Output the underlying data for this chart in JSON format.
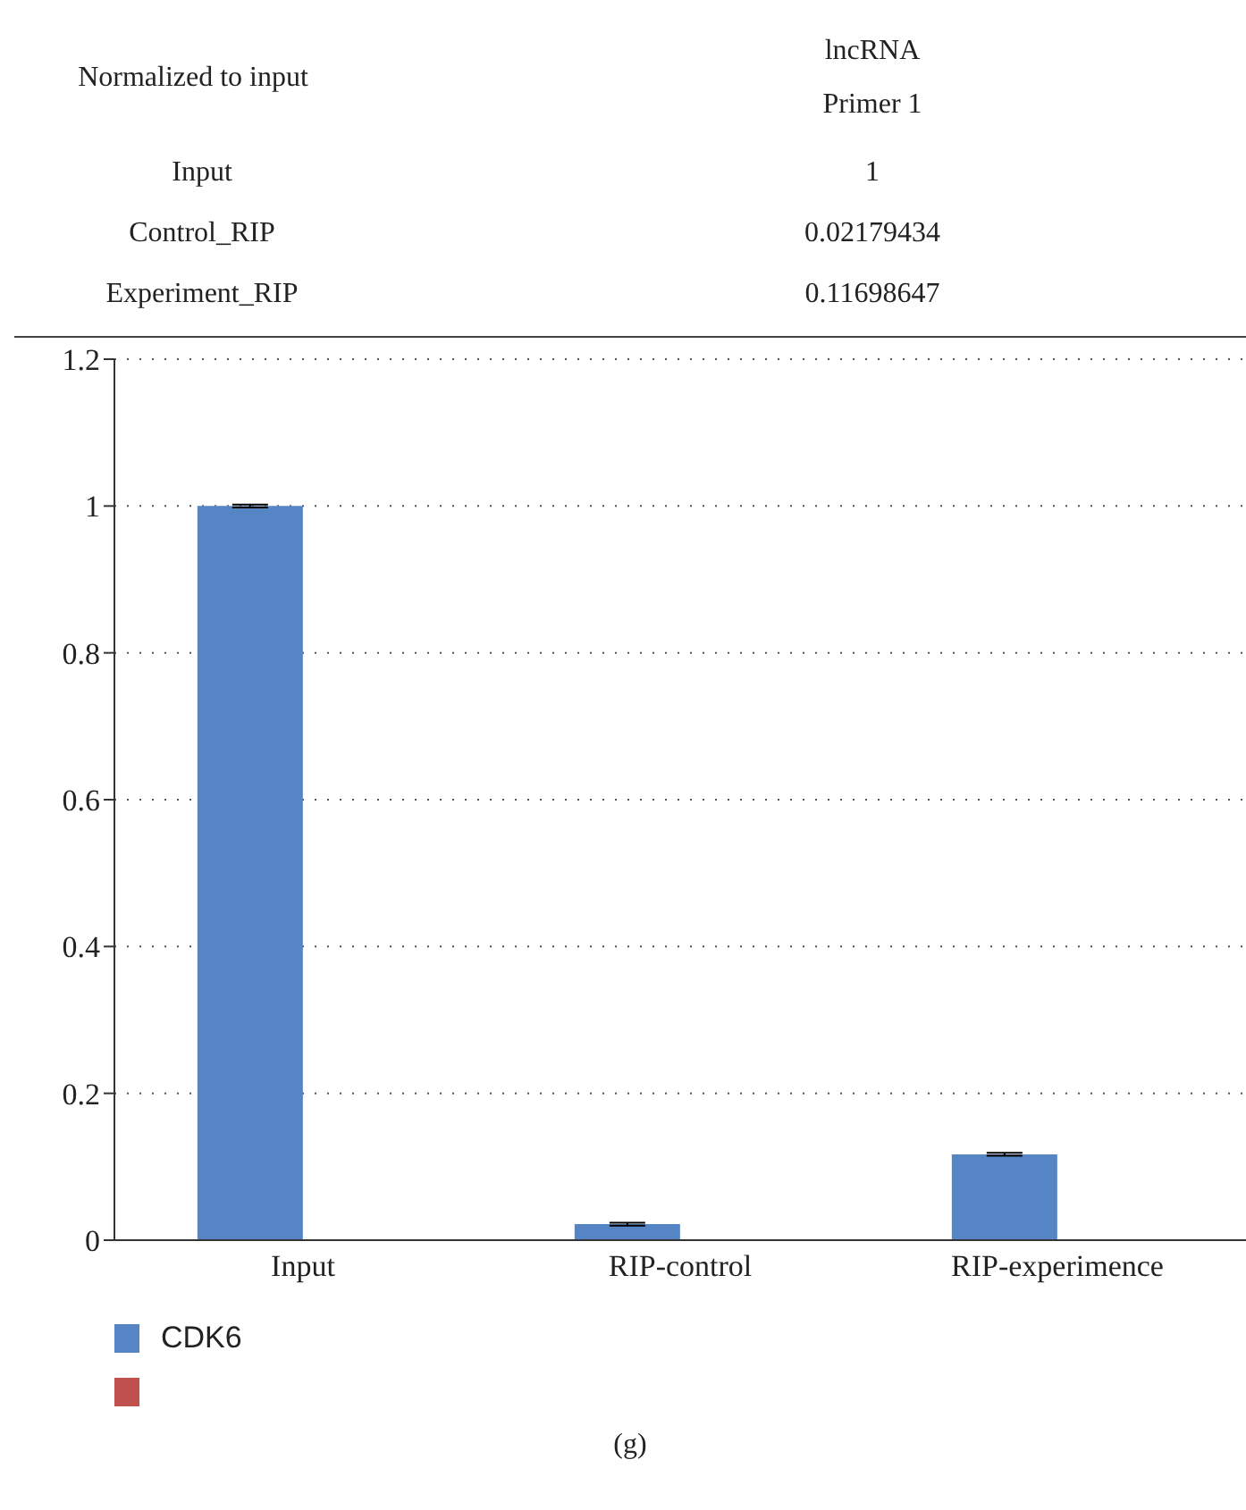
{
  "chart_data": {
    "type": "bar",
    "categories": [
      "Input",
      "RIP-control",
      "RIP-experimence"
    ],
    "series": [
      {
        "name": "CDK6",
        "color": "#5585c5",
        "values": [
          1,
          0.02179434,
          0.11698647
        ],
        "errors": [
          0.002,
          0.002,
          0.002
        ]
      },
      {
        "color": "#c0504d",
        "values": [
          null,
          null,
          null
        ]
      }
    ],
    "ylim": [
      0,
      1.2
    ],
    "yticks": [
      0,
      0.2,
      0.4,
      0.6,
      0.8,
      1,
      1.2
    ],
    "grid": "y",
    "legend": "bottom left",
    "annotations": [
      "Normalized to input",
      "lncRNA Primer 1",
      "Input",
      "1",
      "Control_RIP",
      "0.02179434",
      "Experiment_RIP",
      "0.11698647",
      "(g)"
    ]
  }
}
